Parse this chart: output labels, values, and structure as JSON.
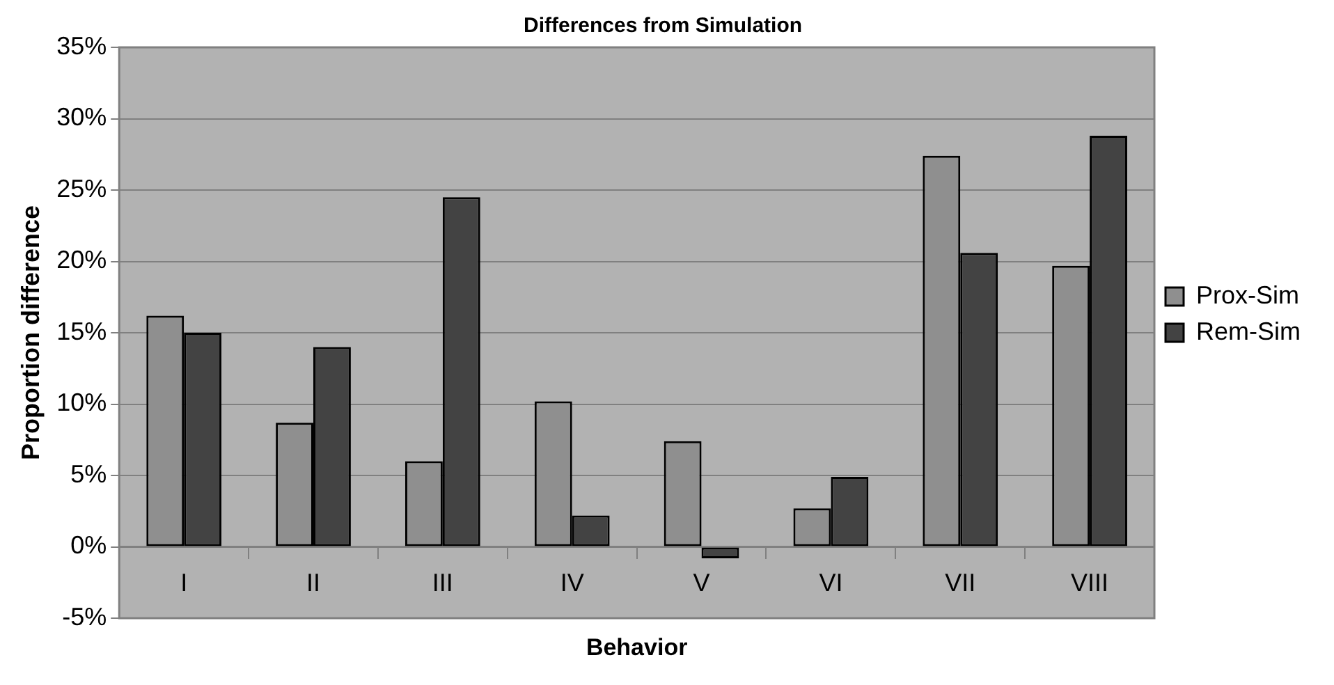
{
  "chart_data": {
    "type": "bar",
    "title": "Differences from Simulation",
    "xlabel": "Behavior",
    "ylabel": "Proportion difference",
    "categories": [
      "I",
      "II",
      "III",
      "IV",
      "V",
      "VI",
      "VII",
      "VIII"
    ],
    "series": [
      {
        "name": "Prox-Sim",
        "color": "#8f8f8f",
        "values": [
          16.2,
          8.7,
          6.0,
          10.2,
          7.4,
          2.7,
          27.4,
          19.7
        ]
      },
      {
        "name": "Rem-Sim",
        "color": "#434343",
        "values": [
          15.0,
          14.0,
          24.5,
          2.2,
          -0.8,
          4.9,
          20.6,
          28.8
        ]
      }
    ],
    "ylim": [
      -5,
      35
    ],
    "yticks": [
      {
        "value": -5,
        "label": "-5%"
      },
      {
        "value": 0,
        "label": "0%"
      },
      {
        "value": 5,
        "label": "5%"
      },
      {
        "value": 10,
        "label": "10%"
      },
      {
        "value": 15,
        "label": "15%"
      },
      {
        "value": 20,
        "label": "20%"
      },
      {
        "value": 25,
        "label": "25%"
      },
      {
        "value": 30,
        "label": "30%"
      },
      {
        "value": 35,
        "label": "35%"
      }
    ],
    "grid": "y",
    "legend": "right"
  }
}
